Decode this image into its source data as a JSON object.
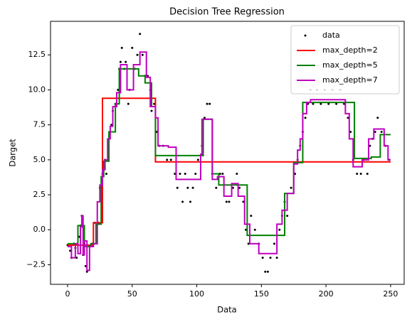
{
  "chart_data": {
    "type": "line",
    "title": "Decision Tree Regression",
    "x_label": "Data",
    "y_label": "Darget",
    "xlim": [
      -13.2,
      260.5
    ],
    "ylim": [
      -3.9,
      14.9
    ],
    "xticks": [
      0,
      50,
      100,
      150,
      200,
      250
    ],
    "yticks": [
      {
        "value": -2.5,
        "label": "−2.5"
      },
      {
        "value": 0,
        "label": "0.0"
      },
      2.5,
      {
        "value": 5,
        "label": "5.0"
      },
      7.5,
      {
        "value": 10,
        "label": "10.0"
      },
      12.5
    ],
    "grid": false,
    "legend": "upper right",
    "series": [
      {
        "name": "data",
        "type": "scatter",
        "color": "#000000",
        "x": [
          0,
          2,
          3,
          5,
          6,
          7,
          9,
          10,
          11,
          12,
          13,
          14,
          15,
          17,
          19,
          21,
          24,
          25,
          27,
          28,
          29,
          30,
          32,
          34,
          35,
          37,
          39,
          40,
          41,
          42,
          44,
          45,
          47,
          48,
          50,
          52,
          54,
          56,
          58,
          60,
          62,
          64,
          65,
          67,
          69,
          71,
          74,
          77,
          80,
          83,
          85,
          87,
          89,
          91,
          93,
          95,
          97,
          99,
          101,
          104,
          106,
          108,
          110,
          112,
          115,
          118,
          120,
          123,
          125,
          128,
          131,
          133,
          136,
          138,
          140,
          142,
          145,
          148,
          151,
          153,
          155,
          157,
          160,
          162,
          164,
          166,
          168,
          170,
          173,
          176,
          178,
          180,
          182,
          184,
          186,
          188,
          190,
          193,
          196,
          199,
          202,
          205,
          208,
          211,
          214,
          217,
          219,
          221,
          224,
          227,
          229,
          232,
          234,
          236,
          238,
          240,
          243,
          246,
          249
        ],
        "values": [
          -1.1,
          -1.5,
          -2.0,
          -1.0,
          -1.3,
          -2.0,
          -0.5,
          0.3,
          1.0,
          -1.8,
          -1.0,
          -2.6,
          -3.0,
          -1.2,
          -1.0,
          0.5,
          0.5,
          3.0,
          4.0,
          4.5,
          5.0,
          4.0,
          6.5,
          7.5,
          8.5,
          9.0,
          10.0,
          11.5,
          12.0,
          13.0,
          11.5,
          12.0,
          9.0,
          10.0,
          13.0,
          11.5,
          12.5,
          14.0,
          12.5,
          11.0,
          11.0,
          10.0,
          8.5,
          9.0,
          7.0,
          6.0,
          6.0,
          5.0,
          5.0,
          4.0,
          3.0,
          4.0,
          2.0,
          4.0,
          3.0,
          2.0,
          3.0,
          4.0,
          5.0,
          6.0,
          8.0,
          9.0,
          9.0,
          4.0,
          3.0,
          4.0,
          4.0,
          2.0,
          2.0,
          3.0,
          4.0,
          3.0,
          2.0,
          0.0,
          -1.0,
          1.0,
          0.0,
          -1.0,
          -2.0,
          -3.0,
          -3.0,
          -2.0,
          -1.0,
          -2.0,
          0.0,
          1.0,
          2.0,
          1.0,
          3.0,
          4.0,
          5.0,
          6.0,
          7.0,
          8.0,
          9.0,
          10.0,
          9.0,
          10.0,
          9.0,
          10.0,
          9.0,
          10.0,
          9.0,
          10.0,
          9.0,
          8.0,
          7.0,
          5.0,
          4.0,
          4.0,
          5.0,
          4.0,
          6.0,
          6.5,
          7.0,
          8.0,
          7.0,
          6.0,
          5.0
        ]
      },
      {
        "name": "max_depth=2",
        "type": "step",
        "color": "#ff0000",
        "x": [
          0,
          20,
          27,
          68,
          250
        ],
        "values": [
          -1.1,
          0.5,
          9.4,
          4.85,
          4.85
        ]
      },
      {
        "name": "max_depth=5",
        "type": "step",
        "color": "#008000",
        "x": [
          0,
          8,
          13,
          18,
          22,
          26,
          28,
          32,
          37,
          40,
          55,
          60,
          65,
          68,
          105,
          112,
          117,
          139,
          160,
          168,
          175,
          182,
          222,
          235,
          242,
          250
        ],
        "values": [
          -1.0,
          0.3,
          -1.2,
          -1.0,
          0.4,
          3.8,
          4.9,
          7.0,
          9.0,
          11.5,
          11.0,
          10.5,
          8.8,
          5.3,
          7.9,
          4.0,
          3.2,
          -0.4,
          -0.4,
          2.6,
          4.8,
          9.1,
          5.1,
          5.2,
          6.8,
          6.8
        ]
      },
      {
        "name": "max_depth=7",
        "type": "step",
        "color": "#bf00bf",
        "x": [
          0,
          3,
          6,
          8,
          10,
          11,
          12,
          13,
          15,
          17,
          20,
          23,
          25,
          27,
          29,
          31,
          33,
          35,
          38,
          41,
          46,
          51,
          56,
          61,
          64,
          68,
          70,
          78,
          84,
          96,
          103,
          104,
          112,
          116,
          121,
          127,
          132,
          137,
          141,
          148,
          162,
          166,
          170,
          175,
          178,
          180,
          182,
          185,
          188,
          215,
          218,
          221,
          228,
          233,
          237,
          245,
          248,
          250
        ],
        "values": [
          -1.2,
          -2.0,
          -1.0,
          -1.7,
          0.2,
          1.0,
          -1.8,
          -0.8,
          -2.9,
          -1.2,
          -1.0,
          2.0,
          3.2,
          4.3,
          5.0,
          6.5,
          7.4,
          8.8,
          9.8,
          11.8,
          10.0,
          11.8,
          12.7,
          10.9,
          8.8,
          8.0,
          6.0,
          5.9,
          3.6,
          3.6,
          5.4,
          7.9,
          3.6,
          3.8,
          2.4,
          3.3,
          2.4,
          0.4,
          -1.0,
          -1.7,
          0.4,
          1.4,
          2.6,
          4.7,
          5.7,
          6.5,
          8.3,
          9.1,
          9.3,
          8.3,
          6.5,
          4.5,
          5.0,
          6.5,
          7.2,
          6.0,
          5.0,
          5.0
        ]
      }
    ]
  }
}
